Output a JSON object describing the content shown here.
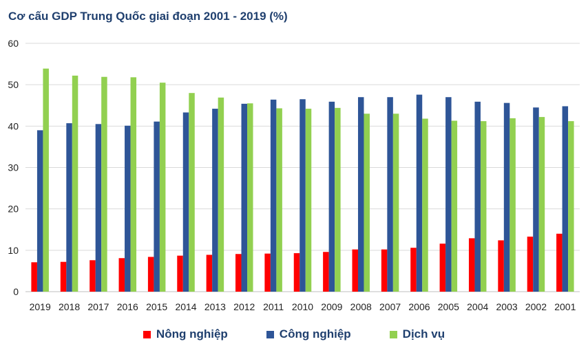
{
  "chart_data": {
    "type": "bar",
    "title": "Cơ cấu GDP Trung Quốc giai đoạn 2001 - 2019 (%)",
    "xlabel": "",
    "ylabel": "",
    "ylim": [
      0,
      60
    ],
    "yticks": [
      "0",
      "10",
      "20",
      "30",
      "40",
      "50",
      "60"
    ],
    "grid": true,
    "legend_position": "bottom",
    "categories": [
      "2019",
      "2018",
      "2017",
      "2016",
      "2015",
      "2014",
      "2013",
      "2012",
      "2011",
      "2010",
      "2009",
      "2008",
      "2007",
      "2006",
      "2005",
      "2004",
      "2003",
      "2002",
      "2001"
    ],
    "series": [
      {
        "name": "Nông nghiệp",
        "color": "#ff0000",
        "values": [
          7.1,
          7.2,
          7.6,
          8.1,
          8.4,
          8.7,
          8.9,
          9.1,
          9.2,
          9.3,
          9.6,
          10.2,
          10.2,
          10.6,
          11.6,
          12.9,
          12.4,
          13.3,
          14.0
        ]
      },
      {
        "name": "Công nghiệp",
        "color": "#2e5597",
        "values": [
          39.0,
          40.7,
          40.5,
          40.1,
          41.1,
          43.3,
          44.2,
          45.4,
          46.4,
          46.5,
          45.9,
          47.0,
          47.0,
          47.6,
          47.0,
          45.9,
          45.6,
          44.5,
          44.8
        ]
      },
      {
        "name": "Dịch vụ",
        "color": "#92d050",
        "values": [
          53.9,
          52.2,
          51.9,
          51.8,
          50.5,
          48.0,
          46.9,
          45.5,
          44.3,
          44.2,
          44.4,
          43.0,
          43.0,
          41.8,
          41.3,
          41.2,
          41.9,
          42.2,
          41.2
        ]
      }
    ]
  }
}
